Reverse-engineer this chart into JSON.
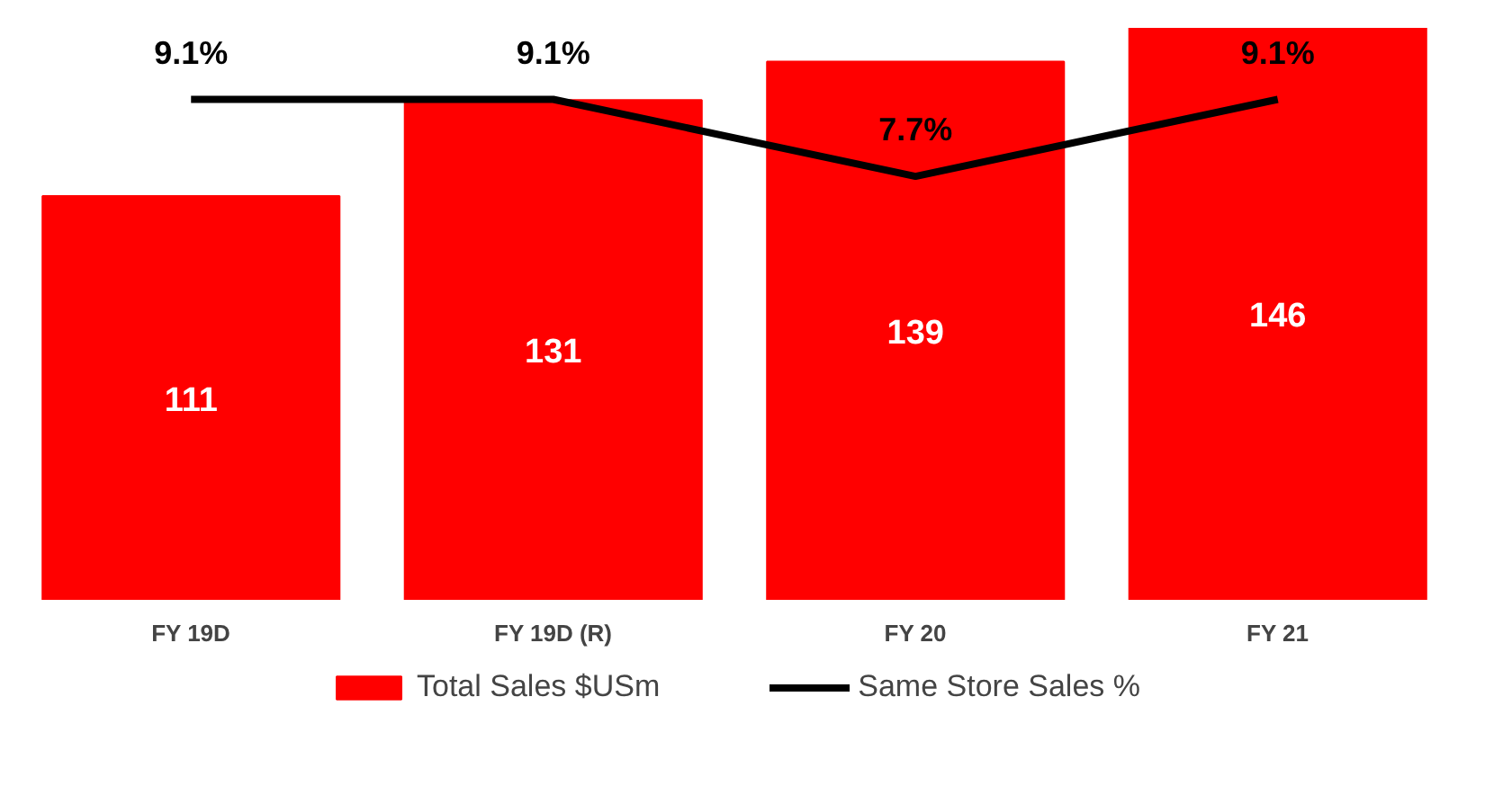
{
  "chart_data": {
    "type": "bar",
    "categories": [
      "FY 19D",
      "FY 19D (R)",
      "FY 20",
      "FY 21"
    ],
    "series": [
      {
        "name": "Total Sales $USm",
        "color": "#ff0000",
        "values": [
          111,
          131,
          139,
          146
        ]
      },
      {
        "name": "Same Store Sales %",
        "type": "line",
        "axis": "y2",
        "color": "#000000",
        "values": [
          9.1,
          9.1,
          7.7,
          9.1
        ],
        "value_labels": [
          "9.1%",
          "9.1%",
          "7.7%",
          "9.1%"
        ]
      }
    ],
    "ylim": [
      27,
      146
    ],
    "y2lim": [
      0,
      10.4
    ],
    "data_labels": true,
    "legend": "bottom",
    "grid": false,
    "tick_labels": "x",
    "marker": "none",
    "line_style": "solid"
  }
}
